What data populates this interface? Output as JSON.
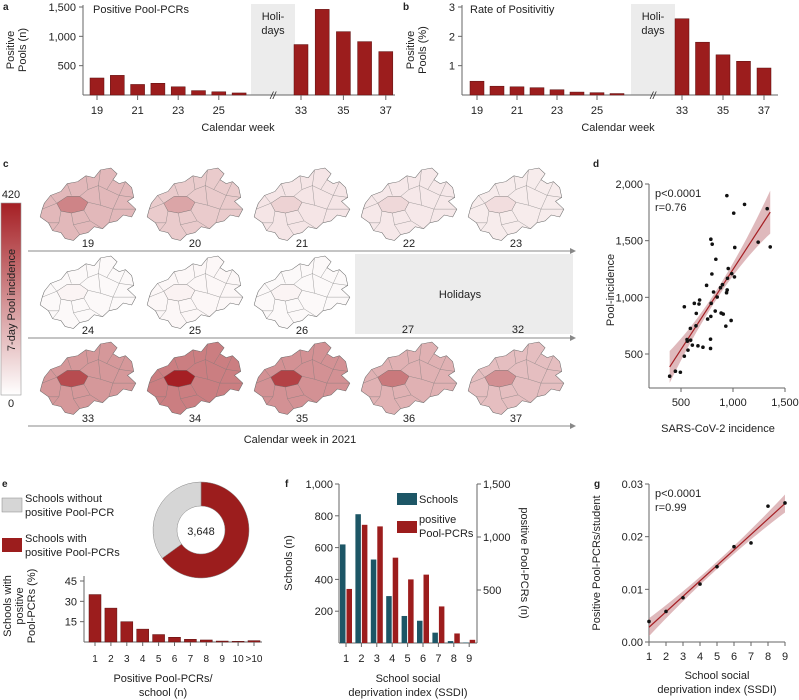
{
  "panel_labels": {
    "a": "a",
    "b": "b",
    "c": "c",
    "d": "d",
    "e": "e",
    "f": "f",
    "g": "g"
  },
  "colors": {
    "red": "#9c1d1d",
    "teal": "#1d5666",
    "holiday": "#ececec",
    "donut_grey": "#d6d6d6",
    "band": "#c98a8f",
    "line": "#a51f24"
  },
  "chart_data": [
    {
      "id": "a",
      "type": "bar",
      "title": "Positive Pool-PCRs",
      "ylabel_lines": [
        "Positive",
        "Pools (n)"
      ],
      "xlabel": "Calendar week",
      "categories": [
        "19",
        "20",
        "21",
        "22",
        "23",
        "24",
        "25",
        "26",
        "33",
        "34",
        "35",
        "36",
        "37"
      ],
      "values": [
        290,
        335,
        180,
        200,
        140,
        75,
        55,
        35,
        860,
        1460,
        1080,
        910,
        740
      ],
      "xtick_labels": [
        "19",
        "21",
        "23",
        "25",
        "33",
        "35",
        "37"
      ],
      "yticks": [
        500,
        1000,
        1500
      ],
      "ytick_labels": [
        "500",
        "1,000",
        "1,500"
      ],
      "ylim": [
        0,
        1500
      ],
      "holiday_label_lines": [
        "Holi-",
        "days"
      ],
      "break_mark": "//"
    },
    {
      "id": "b",
      "type": "bar",
      "title": "Rate of Positivitiy",
      "ylabel_lines": [
        "Positive",
        "Pools (%)"
      ],
      "xlabel": "Calendar week",
      "categories": [
        "19",
        "20",
        "21",
        "22",
        "23",
        "24",
        "25",
        "26",
        "33",
        "34",
        "35",
        "36",
        "37"
      ],
      "values": [
        0.47,
        0.3,
        0.28,
        0.25,
        0.18,
        0.1,
        0.08,
        0.05,
        2.6,
        1.8,
        1.37,
        1.15,
        0.92
      ],
      "xtick_labels": [
        "19",
        "21",
        "23",
        "25",
        "33",
        "35",
        "37"
      ],
      "yticks": [
        1,
        2,
        3
      ],
      "ytick_labels": [
        "1",
        "2",
        "3"
      ],
      "ylim": [
        0,
        3
      ],
      "holiday_label_lines": [
        "Holi-",
        "days"
      ],
      "break_mark": "//"
    },
    {
      "id": "c",
      "type": "heatmap",
      "colorbar_label": "7-day Pool incidence",
      "colorbar_max": "420",
      "colorbar_min": "0",
      "xlabel": "Calendar week in 2021",
      "holidays_label": "Holidays",
      "rows": [
        {
          "weeks": [
            "19",
            "20",
            "21",
            "22",
            "23"
          ],
          "mean_level": [
            110,
            80,
            40,
            35,
            30
          ]
        },
        {
          "weeks": [
            "24",
            "25",
            "26"
          ],
          "mean_level": [
            10,
            12,
            10
          ],
          "holiday_weeks": [
            "27",
            "32"
          ]
        },
        {
          "weeks": [
            "33",
            "34",
            "35",
            "36",
            "37"
          ],
          "mean_level": [
            160,
            200,
            170,
            120,
            100
          ]
        }
      ]
    },
    {
      "id": "d",
      "type": "scatter",
      "xlabel": "SARS-CoV-2 incidence",
      "ylabel": "Pool-incidence",
      "stats": [
        "p<0.0001",
        "r=0.76"
      ],
      "xticks": [
        500,
        1000,
        1500
      ],
      "xtick_labels": [
        "500",
        "1,000",
        "1,500"
      ],
      "yticks": [
        500,
        1000,
        1500,
        2000
      ],
      "ytick_labels": [
        "500",
        "1,000",
        "1,500",
        "2,000"
      ],
      "points": [
        [
          391,
          304
        ],
        [
          446,
          348
        ],
        [
          494,
          339
        ],
        [
          532,
          481
        ],
        [
          567,
          534
        ],
        [
          561,
          613
        ],
        [
          558,
          628
        ],
        [
          593,
          622
        ],
        [
          609,
          578
        ],
        [
          590,
          726
        ],
        [
          644,
          749
        ],
        [
          663,
          572
        ],
        [
          711,
          560
        ],
        [
          532,
          917
        ],
        [
          628,
          947
        ],
        [
          673,
          941
        ],
        [
          679,
          976
        ],
        [
          647,
          858
        ],
        [
          746,
          1106
        ],
        [
          756,
          808
        ],
        [
          784,
          549
        ],
        [
          784,
          631
        ],
        [
          787,
          832
        ],
        [
          790,
          947
        ],
        [
          797,
          1206
        ],
        [
          787,
          1513
        ],
        [
          800,
          1469
        ],
        [
          835,
          1336
        ],
        [
          813,
          1047
        ],
        [
          829,
          879
        ],
        [
          848,
          1003
        ],
        [
          880,
          1085
        ],
        [
          899,
          1112
        ],
        [
          886,
          861
        ],
        [
          906,
          852
        ],
        [
          931,
          746
        ],
        [
          938,
          1041
        ],
        [
          944,
          1065
        ],
        [
          947,
          1168
        ],
        [
          954,
          1254
        ],
        [
          941,
          1897
        ],
        [
          982,
          796
        ],
        [
          988,
          1209
        ],
        [
          1014,
          1180
        ],
        [
          1007,
          1743
        ],
        [
          1017,
          1440
        ],
        [
          1111,
          1820
        ],
        [
          1242,
          1487
        ],
        [
          1329,
          1782
        ],
        [
          1358,
          1445
        ]
      ],
      "fit": [
        [
          391,
          386
        ],
        [
          1358,
          1752
        ]
      ]
    },
    {
      "id": "e",
      "type": "pie",
      "legend": [
        {
          "label_lines": [
            "Schools without",
            "positive Pool-PCR"
          ]
        },
        {
          "label_lines": [
            "Schools with",
            "positive Pool-PCRs"
          ]
        }
      ],
      "total_label": "3,648",
      "fractions": [
        0.35,
        0.65
      ]
    },
    {
      "id": "e2",
      "type": "bar",
      "ylabel_lines": [
        "Schools with",
        "positive",
        "Pool-PCRs (%)"
      ],
      "xlabel_lines": [
        "Positive Pool-PCRs/",
        "school (n)"
      ],
      "categories": [
        "1",
        "2",
        "3",
        "4",
        "5",
        "6",
        "7",
        "8",
        "9",
        "10",
        ">10"
      ],
      "values": [
        35,
        25,
        15,
        9.5,
        5.5,
        3.5,
        2,
        1.5,
        0.7,
        0.5,
        1
      ],
      "yticks": [
        15,
        30,
        45
      ],
      "ytick_labels": [
        "15",
        "30",
        "45"
      ],
      "ylim": [
        0,
        45
      ]
    },
    {
      "id": "f",
      "type": "bar",
      "categories": [
        "1",
        "2",
        "3",
        "4",
        "5",
        "6",
        "7",
        "8",
        "9"
      ],
      "xlabel_lines": [
        "School social",
        "deprivation index (SSDI)"
      ],
      "ylabel_left": "Schools (n)",
      "ylabel_right": "positive Pool-PCRs (n)",
      "series": [
        {
          "name": "Schools",
          "axis": "left",
          "values": [
            620,
            810,
            525,
            295,
            170,
            140,
            65,
            12,
            3
          ]
        },
        {
          "name_lines": [
            "positive",
            "Pool-PCRs"
          ],
          "axis": "right",
          "values": [
            510,
            1115,
            1100,
            805,
            600,
            645,
            345,
            90,
            30
          ]
        }
      ],
      "yticks_left": [
        200,
        400,
        600,
        800,
        1000
      ],
      "ytick_labels_left": [
        "200",
        "400",
        "600",
        "800",
        "1,000"
      ],
      "yticks_right": [
        500,
        1000,
        1500
      ],
      "ytick_labels_right": [
        "500",
        "1,000",
        "1,500"
      ],
      "ylim_left": [
        0,
        1000
      ],
      "ylim_right": [
        0,
        1500
      ]
    },
    {
      "id": "g",
      "type": "scatter",
      "ylabel": "Positive Pool-PCRs/student",
      "xlabel_lines": [
        "School social",
        "deprivation index (SSDI)"
      ],
      "stats": [
        "p<0.0001",
        "r=0.99"
      ],
      "xticks": [
        1,
        2,
        3,
        4,
        5,
        6,
        7,
        8,
        9
      ],
      "xtick_labels": [
        "1",
        "2",
        "3",
        "4",
        "5",
        "6",
        "7",
        "8",
        "9"
      ],
      "yticks": [
        0,
        0.01,
        0.02,
        0.03
      ],
      "ytick_labels": [
        "0.00",
        "0.01",
        "0.02",
        "0.03"
      ],
      "points": [
        [
          1,
          0.0039
        ],
        [
          2,
          0.0058
        ],
        [
          3,
          0.0084
        ],
        [
          4,
          0.011
        ],
        [
          5,
          0.0143
        ],
        [
          6,
          0.0181
        ],
        [
          7,
          0.0188
        ],
        [
          8,
          0.0258
        ],
        [
          9,
          0.0264
        ]
      ],
      "fit": [
        [
          1,
          0.0028
        ],
        [
          9,
          0.0263
        ]
      ]
    }
  ]
}
